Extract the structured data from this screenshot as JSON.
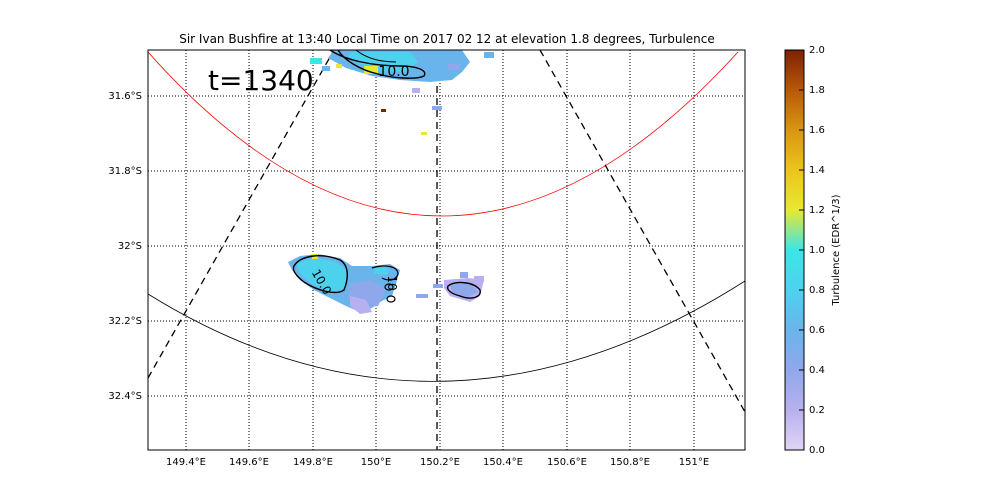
{
  "title": "Sir Ivan Bushfire at 13:40 Local Time on 2017 02 12 at elevation 1.8 degrees, Turbulence",
  "time_label": "t=1340",
  "contour_labels": [
    "10.0",
    "10.0",
    "10"
  ],
  "colorbar": {
    "label": "Turbulence (EDR^1/3)",
    "ticks": [
      "0.0",
      "0.2",
      "0.4",
      "0.6",
      "0.8",
      "1.0",
      "1.2",
      "1.4",
      "1.6",
      "1.8",
      "2.0"
    ]
  },
  "chart_data": {
    "type": "heatmap",
    "title": "Sir Ivan Bushfire at 13:40 Local Time on 2017 02 12 at elevation 1.8 degrees, Turbulence",
    "x_ticks": [
      "149.4°E",
      "149.6°E",
      "149.8°E",
      "150°E",
      "150.2°E",
      "150.4°E",
      "150.6°E",
      "150.8°E",
      "151°E"
    ],
    "y_ticks": [
      "31.6°S",
      "31.8°S",
      "32°S",
      "32.2°S",
      "32.4°S"
    ],
    "lon_range": [
      149.28,
      151.16
    ],
    "lat_range": [
      -32.54,
      -31.47
    ],
    "grid": true,
    "color_range": [
      0.0,
      2.0
    ],
    "colormap": [
      "#e0d4f5",
      "#b8b0ee",
      "#8fa8ec",
      "#6ab4ec",
      "#4dd2ee",
      "#3ce6e6",
      "#e8e832",
      "#ecc41c",
      "#d89612",
      "#b85808",
      "#7c2204"
    ],
    "colorbar_label": "Turbulence (EDR^1/3)",
    "annotations": [
      "t=1340",
      "10.0",
      "10.0",
      "10"
    ],
    "echo_regions": [
      {
        "name": "north",
        "lon_range": [
          149.84,
          150.42
        ],
        "lat_range": [
          -31.56,
          -31.47
        ],
        "value_range": [
          0.4,
          1.1
        ]
      },
      {
        "name": "central-west",
        "lon_range": [
          149.77,
          150.07
        ],
        "lat_range": [
          -32.14,
          -32.0
        ],
        "value_range": [
          0.3,
          1.0
        ]
      },
      {
        "name": "central-east",
        "lon_range": [
          150.2,
          150.33
        ],
        "lat_range": [
          -32.12,
          -32.08
        ],
        "value_range": [
          0.2,
          0.5
        ]
      }
    ]
  }
}
